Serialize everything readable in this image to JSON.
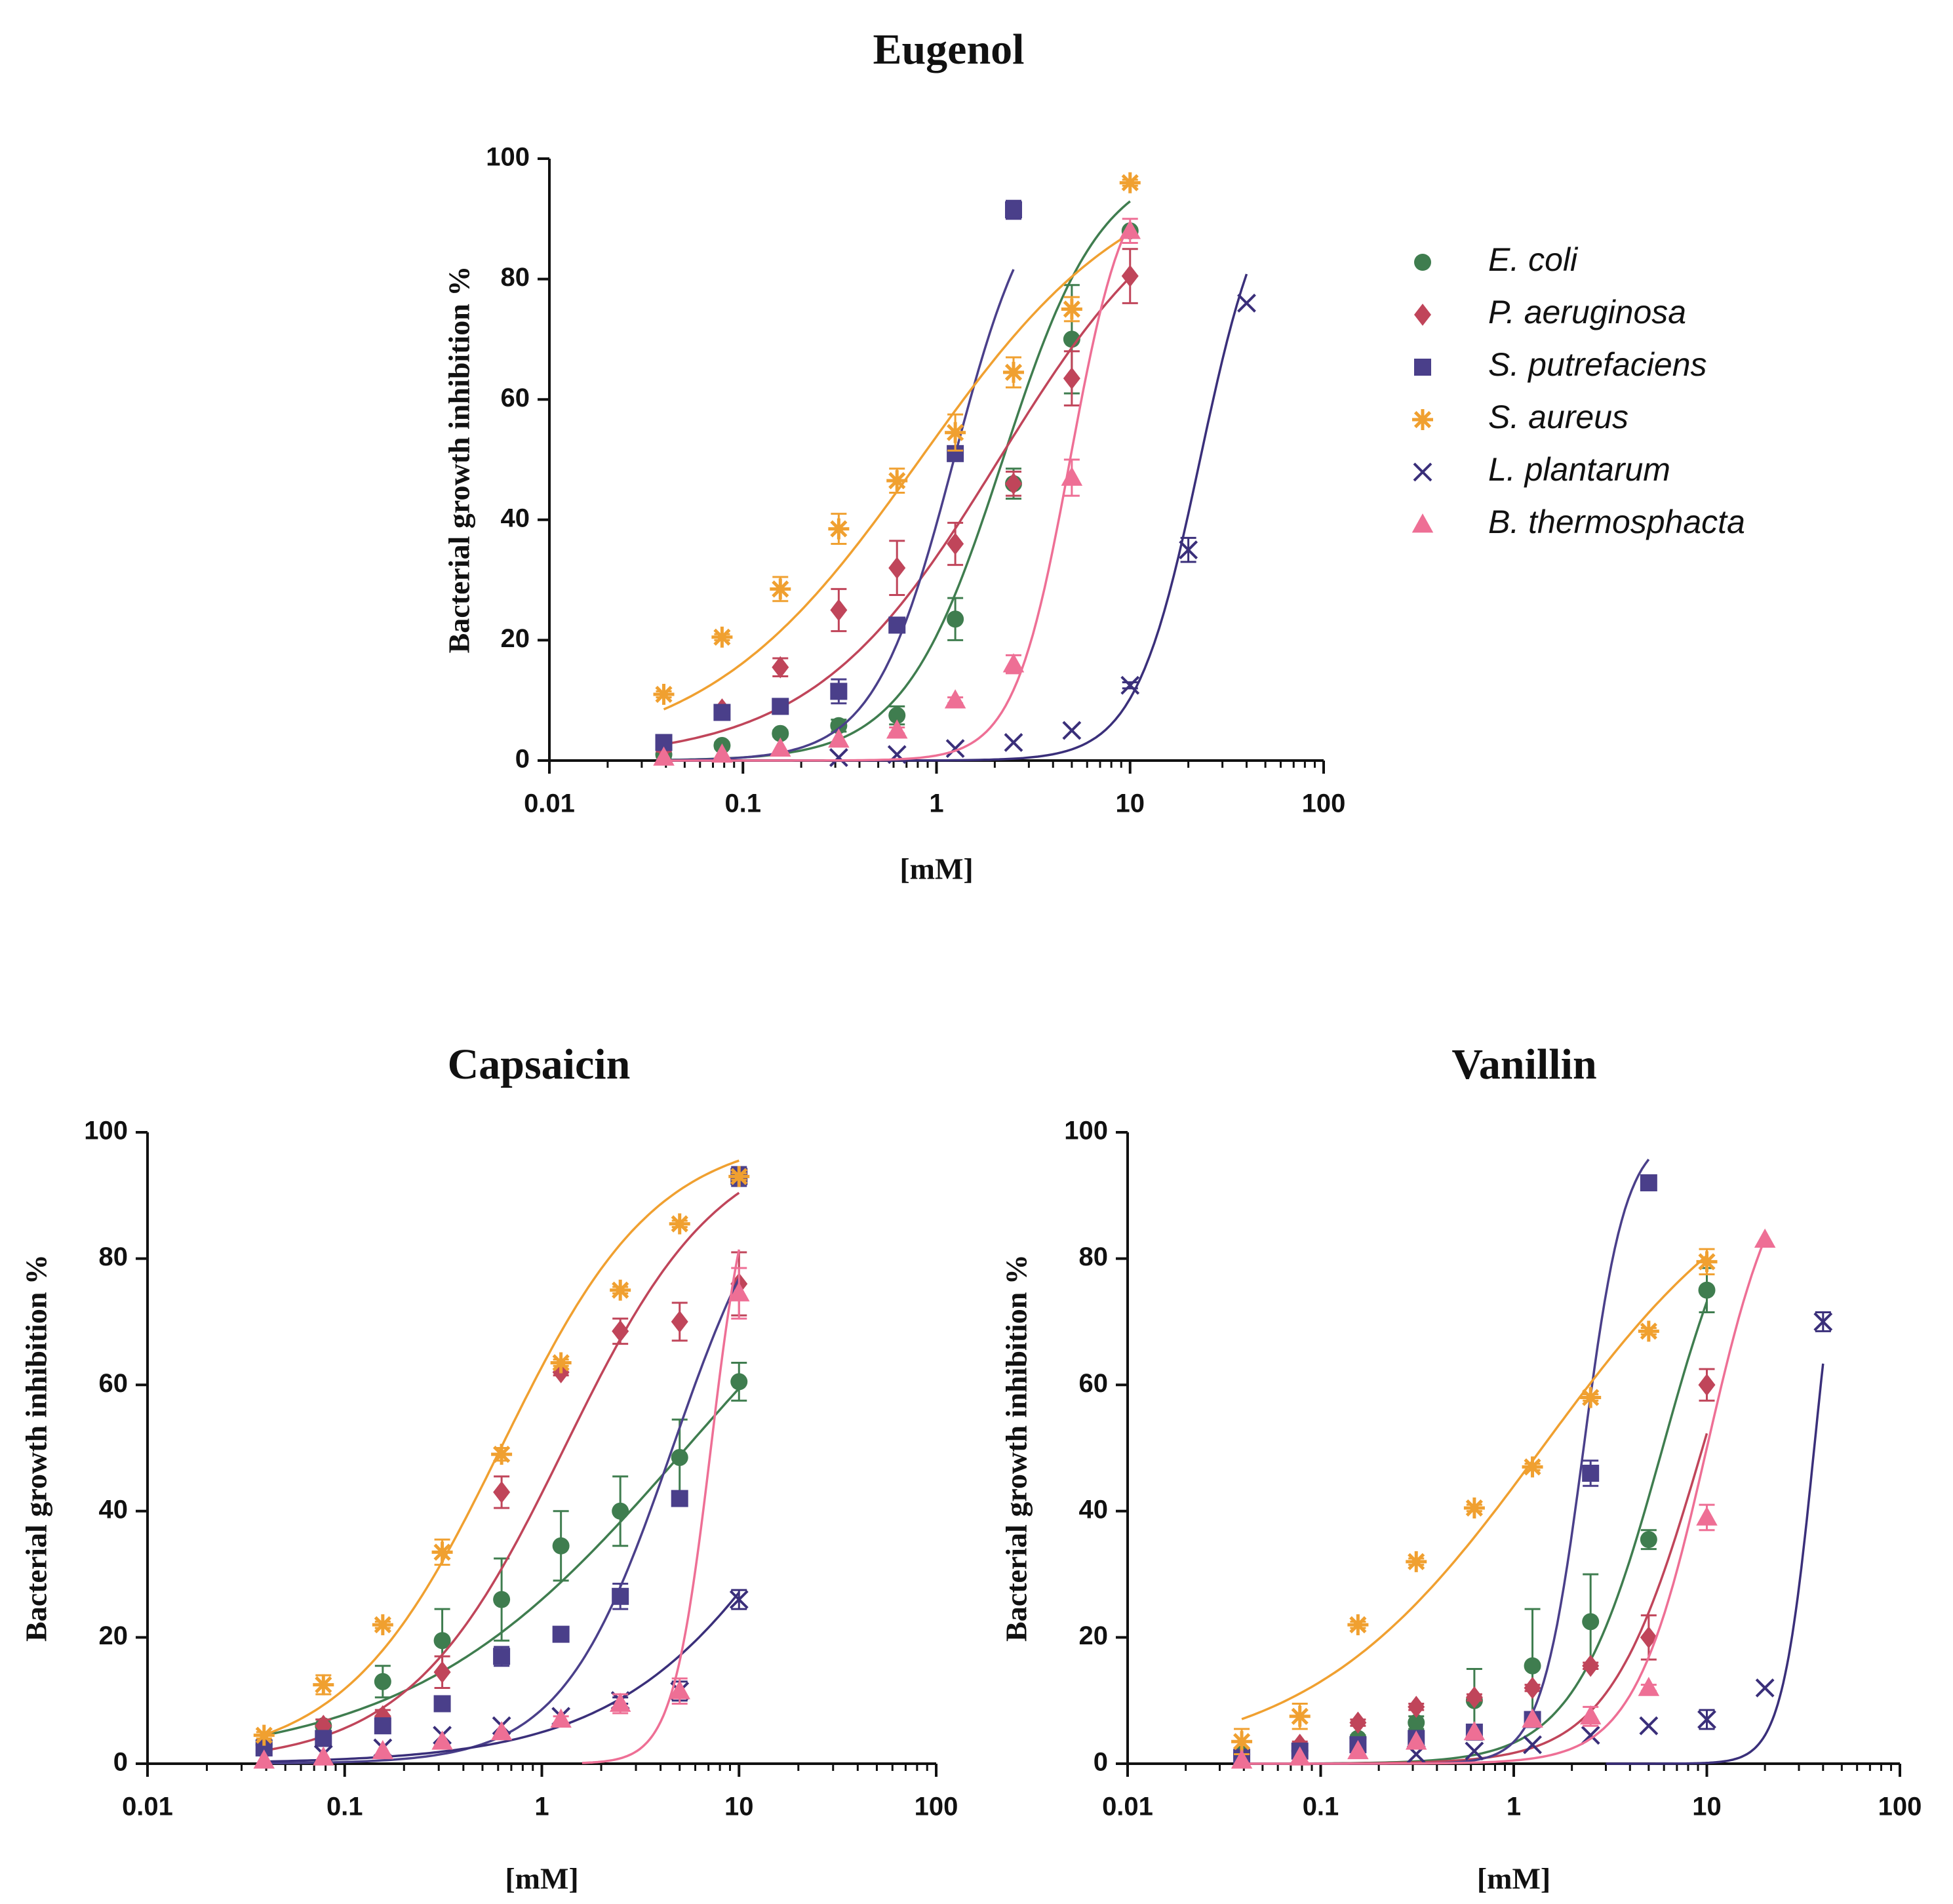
{
  "legend": {
    "series": [
      {
        "key": "ecoli",
        "name": "E. coli",
        "color": "#3f7d4f",
        "marker": "circle"
      },
      {
        "key": "paer",
        "name": "P. aeruginosa",
        "color": "#c0455a",
        "marker": "diamond"
      },
      {
        "key": "sput",
        "name": "S. putrefaciens",
        "color": "#4a3f8a",
        "marker": "square"
      },
      {
        "key": "saur",
        "name": "S. aureus",
        "color": "#f0a030",
        "marker": "asterisk"
      },
      {
        "key": "lpla",
        "name": "L. plantarum",
        "color": "#3a2f7a",
        "marker": "x"
      },
      {
        "key": "bthe",
        "name": "B. thermosphacta",
        "color": "#ee6f95",
        "marker": "triangle"
      }
    ]
  },
  "chart_data": [
    {
      "type": "scatter",
      "title": "Eugenol",
      "xlabel": "[mM]",
      "ylabel": "Bacterial growth inhibition %",
      "xscale": "log",
      "xlim": [
        0.01,
        100
      ],
      "ylim": [
        0,
        100
      ],
      "xticks": [
        "0.01",
        "0.1",
        "1",
        "10",
        "100"
      ],
      "yticks": [
        "0",
        "20",
        "40",
        "60",
        "80",
        "100"
      ],
      "series": {
        "ecoli": {
          "x": [
            0.039,
            0.078,
            0.156,
            0.3125,
            0.625,
            1.25,
            2.5,
            5,
            10
          ],
          "y": [
            1,
            2.5,
            4.5,
            5.8,
            7.5,
            23.5,
            46,
            70,
            88
          ],
          "err": [
            0.5,
            0.5,
            0.5,
            1,
            1.5,
            3.5,
            2.5,
            9,
            0
          ],
          "fit": {
            "ec50": 2.2,
            "hill": 1.7,
            "top": 100,
            "bottom": 0,
            "xmin": 0.039,
            "xmax": 10
          }
        },
        "paer": {
          "x": [
            0.039,
            0.078,
            0.156,
            0.3125,
            0.625,
            1.25,
            2.5,
            5,
            10
          ],
          "y": [
            2,
            8.5,
            15.5,
            25,
            32,
            36,
            46,
            63.5,
            80.5
          ],
          "err": [
            0.5,
            0.5,
            1.5,
            3.5,
            4.5,
            3.5,
            2,
            4.5,
            4.5
          ],
          "fit": {
            "ec50": 2.1,
            "hill": 0.9,
            "top": 100,
            "bottom": 0,
            "xmin": 0.039,
            "xmax": 10
          }
        },
        "sput": {
          "x": [
            0.039,
            0.078,
            0.156,
            0.3125,
            0.625,
            1.25,
            2.5
          ],
          "y": [
            3,
            8,
            9,
            11.5,
            22.5,
            51,
            91.5
          ],
          "err": [
            0.5,
            0.5,
            0.5,
            2,
            0.5,
            0.5,
            1.5
          ],
          "fit": {
            "ec50": 1.23,
            "hill": 2.1,
            "top": 100,
            "bottom": 0,
            "xmin": 0.039,
            "xmax": 2.5
          }
        },
        "saur": {
          "x": [
            0.039,
            0.078,
            0.156,
            0.3125,
            0.625,
            1.25,
            2.5,
            5,
            10
          ],
          "y": [
            11,
            20.5,
            28.5,
            38.5,
            46.5,
            54.5,
            64.5,
            75,
            96
          ],
          "err": [
            0.5,
            0.5,
            2,
            2.5,
            2,
            3,
            2.5,
            2,
            0.5
          ],
          "fit": {
            "ec50": 0.82,
            "hill": 0.78,
            "top": 100,
            "bottom": 0,
            "xmin": 0.039,
            "xmax": 10
          }
        },
        "lpla": {
          "x": [
            0.3125,
            0.625,
            1.25,
            2.5,
            5,
            10,
            20,
            40
          ],
          "y": [
            0.5,
            1,
            2,
            3,
            5,
            12.5,
            35,
            76
          ],
          "err": [
            0,
            0,
            0,
            0,
            0,
            0.5,
            2,
            0
          ],
          "fit": {
            "ec50": 23,
            "hill": 2.6,
            "top": 100,
            "bottom": 0,
            "xmin": 0.039,
            "xmax": 40
          }
        },
        "bthe": {
          "x": [
            0.039,
            0.078,
            0.156,
            0.3125,
            0.625,
            1.25,
            2.5,
            5,
            10
          ],
          "y": [
            0.5,
            1,
            2,
            3.5,
            5,
            10,
            16,
            47,
            88
          ],
          "err": [
            0,
            0,
            0,
            0,
            0.5,
            0.5,
            1.5,
            3,
            2
          ],
          "fit": {
            "ec50": 4.9,
            "hill": 3.0,
            "top": 100,
            "bottom": 0,
            "xmin": 0.039,
            "xmax": 10
          }
        }
      }
    },
    {
      "type": "scatter",
      "title": "Capsaicin",
      "xlabel": "[mM]",
      "ylabel": "Bacterial growth inhibition %",
      "xscale": "log",
      "xlim": [
        0.01,
        100
      ],
      "ylim": [
        0,
        100
      ],
      "xticks": [
        "0.01",
        "0.1",
        "1",
        "10",
        "100"
      ],
      "yticks": [
        "0",
        "20",
        "40",
        "60",
        "80",
        "100"
      ],
      "series": {
        "ecoli": {
          "x": [
            0.039,
            0.078,
            0.156,
            0.3125,
            0.625,
            1.25,
            2.5,
            5,
            10
          ],
          "y": [
            3,
            6,
            13,
            19.5,
            26,
            34.5,
            40,
            48.5,
            60.5
          ],
          "err": [
            0.5,
            1,
            2.5,
            5,
            6.5,
            5.5,
            5.5,
            6,
            3
          ],
          "fit": {
            "ec50": 5.4,
            "hill": 0.62,
            "top": 100,
            "bottom": 0,
            "xmin": 0.039,
            "xmax": 10
          }
        },
        "paer": {
          "x": [
            0.039,
            0.078,
            0.156,
            0.3125,
            0.625,
            1.25,
            2.5,
            5,
            10
          ],
          "y": [
            2,
            6,
            7.5,
            14.5,
            43,
            62,
            68.5,
            70,
            76
          ],
          "err": [
            0.5,
            1,
            1,
            2.5,
            2.5,
            0.5,
            2,
            3,
            5
          ],
          "fit": {
            "ec50": 1.3,
            "hill": 1.1,
            "top": 100,
            "bottom": 0,
            "xmin": 0.039,
            "xmax": 10
          }
        },
        "sput": {
          "x": [
            0.039,
            0.078,
            0.156,
            0.3125,
            0.625,
            1.25,
            2.5,
            5,
            10
          ],
          "y": [
            2.5,
            4,
            6,
            9.5,
            17,
            20.5,
            26.5,
            42,
            93
          ],
          "err": [
            0.5,
            0.5,
            0.5,
            0.5,
            1.5,
            0.5,
            2,
            0.5,
            1.5
          ],
          "fit": {
            "ec50": 4.6,
            "hill": 1.55,
            "top": 100,
            "bottom": 0,
            "xmin": 0.039,
            "xmax": 10
          }
        },
        "saur": {
          "x": [
            0.039,
            0.078,
            0.156,
            0.3125,
            0.625,
            1.25,
            2.5,
            5,
            10
          ],
          "y": [
            4.5,
            12.5,
            22,
            33.5,
            49,
            63.5,
            75,
            85.5,
            93
          ],
          "err": [
            0.5,
            1.5,
            0.5,
            2,
            1,
            0.5,
            0.5,
            0.5,
            0.5
          ],
          "fit": {
            "ec50": 0.62,
            "hill": 1.1,
            "top": 100,
            "bottom": 0,
            "xmin": 0.039,
            "xmax": 10
          }
        },
        "lpla": {
          "x": [
            0.078,
            0.156,
            0.3125,
            0.625,
            1.25,
            2.5,
            5,
            10
          ],
          "y": [
            1.5,
            2.5,
            4.5,
            6,
            7.5,
            10,
            11.5,
            26
          ],
          "err": [
            0,
            0,
            0,
            0,
            0,
            0.5,
            1.5,
            1.5
          ],
          "fit": {
            "ec50": 32,
            "hill": 0.85,
            "top": 100,
            "bottom": 0,
            "xmin": 0.039,
            "xmax": 10
          }
        },
        "bthe": {
          "x": [
            0.039,
            0.078,
            0.156,
            0.3125,
            0.625,
            1.25,
            2.5,
            5,
            10
          ],
          "y": [
            0.5,
            1,
            2,
            3.5,
            5,
            7,
            9.5,
            11.5,
            74.5
          ],
          "err": [
            0,
            0,
            0,
            0,
            0,
            0.5,
            1.5,
            2,
            4
          ],
          "fit": {
            "ec50": 7.2,
            "hill": 4.5,
            "top": 100,
            "bottom": 0,
            "xmin": 1.6,
            "xmax": 10
          }
        }
      }
    },
    {
      "type": "scatter",
      "title": "Vanillin",
      "xlabel": "[mM]",
      "ylabel": "Bacterial growth inhibition %",
      "xscale": "log",
      "xlim": [
        0.01,
        100
      ],
      "ylim": [
        0,
        100
      ],
      "xticks": [
        "0.01",
        "0.1",
        "1",
        "10",
        "100"
      ],
      "yticks": [
        "0",
        "20",
        "40",
        "60",
        "80",
        "100"
      ],
      "series": {
        "ecoli": {
          "x": [
            0.039,
            0.078,
            0.156,
            0.3125,
            0.625,
            1.25,
            2.5,
            5,
            10
          ],
          "y": [
            1.5,
            2,
            4,
            6.5,
            10,
            15.5,
            22.5,
            35.5,
            75
          ],
          "err": [
            0.5,
            0.5,
            0.5,
            1,
            5,
            9,
            7.5,
            1.5,
            3.5
          ],
          "fit": {
            "ec50": 5.9,
            "hill": 1.9,
            "top": 100,
            "bottom": 0,
            "xmin": 0.039,
            "xmax": 10
          }
        },
        "paer": {
          "x": [
            0.039,
            0.078,
            0.156,
            0.3125,
            0.625,
            1.25,
            2.5,
            5,
            10
          ],
          "y": [
            1,
            3,
            6.5,
            9,
            10.5,
            12,
            15.5,
            20,
            60
          ],
          "err": [
            0,
            0.5,
            0.5,
            0.5,
            0.5,
            0.5,
            0.5,
            3.5,
            2.5
          ],
          "fit": {
            "ec50": 9.5,
            "hill": 1.8,
            "top": 100,
            "bottom": 0,
            "xmin": 0.039,
            "xmax": 10
          }
        },
        "sput": {
          "x": [
            0.039,
            0.078,
            0.156,
            0.3125,
            0.625,
            1.25,
            2.5,
            5
          ],
          "y": [
            1,
            2,
            3,
            4,
            5,
            7,
            46,
            92
          ],
          "err": [
            0,
            0,
            0,
            0,
            0,
            0,
            2,
            1
          ],
          "fit": {
            "ec50": 2.3,
            "hill": 4.0,
            "top": 100,
            "bottom": 0,
            "xmin": 0.039,
            "xmax": 5
          }
        },
        "saur": {
          "x": [
            0.039,
            0.078,
            0.156,
            0.3125,
            0.625,
            1.25,
            2.5,
            5,
            10
          ],
          "y": [
            3.5,
            7.5,
            22,
            32,
            40.5,
            47,
            58,
            68.5,
            79.5
          ],
          "err": [
            2,
            2,
            0.5,
            0.5,
            0.5,
            0.5,
            0.5,
            0.5,
            2
          ],
          "fit": {
            "ec50": 1.4,
            "hill": 0.72,
            "top": 100,
            "bottom": 0,
            "xmin": 0.039,
            "xmax": 10
          }
        },
        "lpla": {
          "x": [
            0.3125,
            0.625,
            1.25,
            2.5,
            5,
            10,
            20,
            40
          ],
          "y": [
            1.5,
            2,
            3,
            4.5,
            6,
            7,
            12,
            70
          ],
          "err": [
            0,
            0,
            0,
            0,
            0,
            1.5,
            0,
            1.5
          ],
          "fit": {
            "ec50": 36,
            "hill": 5.2,
            "top": 100,
            "bottom": 0,
            "xmin": 3,
            "xmax": 40
          }
        },
        "bthe": {
          "x": [
            0.039,
            0.078,
            0.156,
            0.3125,
            0.625,
            1.25,
            2.5,
            5,
            10,
            20
          ],
          "y": [
            0.5,
            1,
            2,
            3.5,
            5,
            7,
            7.5,
            12,
            39,
            83
          ],
          "err": [
            0,
            0,
            0,
            0,
            0,
            0,
            1.5,
            0.5,
            2,
            0
          ],
          "fit": {
            "ec50": 10,
            "hill": 2.3,
            "top": 100,
            "bottom": 0,
            "xmin": 0.039,
            "xmax": 20
          }
        }
      }
    }
  ]
}
